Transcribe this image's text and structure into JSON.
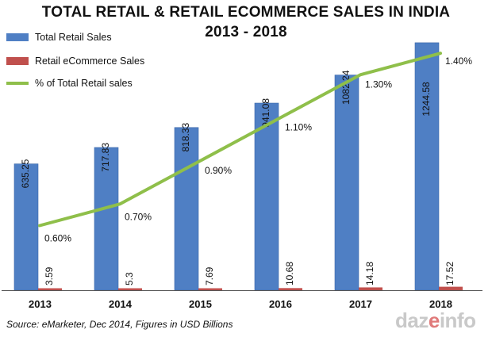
{
  "header": {
    "title_line1": "TOTAL RETAIL & RETAIL ECOMMERCE SALES IN INDIA",
    "title_line2": "2013 - 2018"
  },
  "footer": {
    "source": "Source: eMarketer, Dec 2014, Figures in USD Billions",
    "logo_text": "dazeinfo"
  },
  "colors": {
    "total_retail": "#4f7fc4",
    "ecommerce": "#c0504d",
    "percent_line": "#8fbf4a"
  },
  "chart_data": {
    "type": "bar",
    "title": "TOTAL RETAIL & RETAIL ECOMMERCE SALES IN INDIA 2013 - 2018",
    "categories": [
      "2013",
      "2014",
      "2015",
      "2016",
      "2017",
      "2018"
    ],
    "series": [
      {
        "name": "Total Retail Sales",
        "type": "bar",
        "values": [
          635.25,
          717.83,
          818.33,
          941.08,
          1082.24,
          1244.58
        ],
        "labels": [
          "635.25",
          "717.83",
          "818.33",
          "941.08",
          "1082.24",
          "1244.58"
        ]
      },
      {
        "name": "Retail eCommerce Sales",
        "type": "bar",
        "values": [
          3.59,
          5.3,
          7.69,
          10.68,
          14.18,
          17.52
        ],
        "labels": [
          "3.59",
          "5.3",
          "7.69",
          "10.68",
          "14.18",
          "17.52"
        ]
      },
      {
        "name": "% of Total Retail sales",
        "type": "line",
        "values": [
          0.6,
          0.7,
          0.9,
          1.1,
          1.3,
          1.4
        ],
        "labels": [
          "0.60%",
          "0.70%",
          "0.90%",
          "1.10%",
          "1.30%",
          "1.40%"
        ]
      }
    ],
    "bar_ylim": [
      0,
      1300
    ],
    "line_ylim": [
      0.3,
      1.5
    ],
    "grid": false,
    "legend_position": "top-left"
  }
}
